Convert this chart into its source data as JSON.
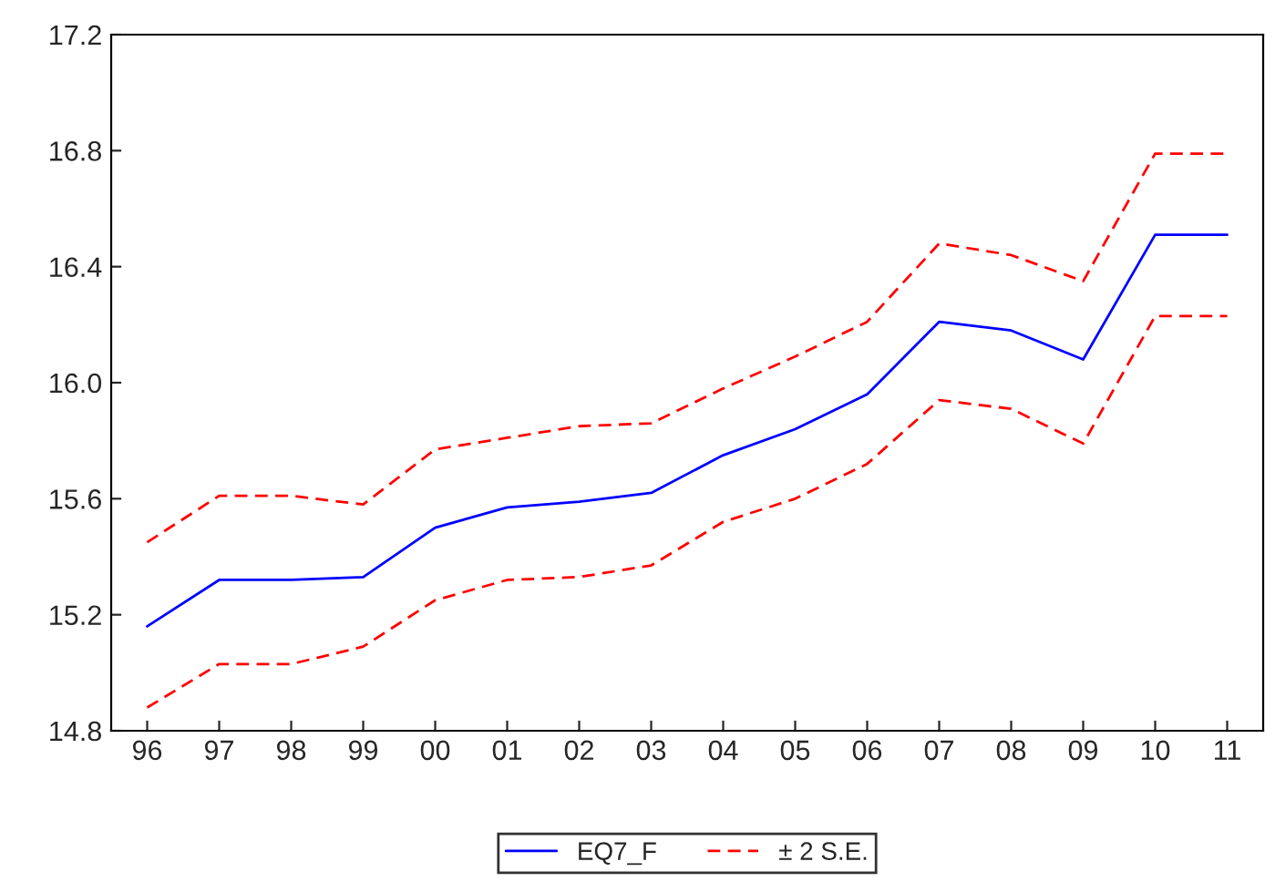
{
  "chart_data": {
    "type": "line",
    "categories": [
      "96",
      "97",
      "98",
      "99",
      "00",
      "01",
      "02",
      "03",
      "04",
      "05",
      "06",
      "07",
      "08",
      "09",
      "10",
      "11"
    ],
    "series": [
      {
        "name": "EQ7_F",
        "color": "#0000ff",
        "line_style": "solid",
        "values": [
          15.16,
          15.32,
          15.32,
          15.33,
          15.5,
          15.57,
          15.59,
          15.62,
          15.75,
          15.84,
          15.96,
          16.21,
          16.18,
          16.08,
          16.51,
          16.51
        ]
      },
      {
        "name": "± 2 S.E.",
        "color": "#ff0000",
        "line_style": "dashed",
        "values": [
          15.45,
          15.61,
          15.61,
          15.58,
          15.77,
          15.81,
          15.85,
          15.86,
          15.98,
          16.09,
          16.21,
          16.48,
          16.44,
          16.35,
          16.79,
          16.79
        ]
      },
      {
        "color": "#ff0000",
        "line_style": "dashed",
        "values": [
          14.88,
          15.03,
          15.03,
          15.09,
          15.25,
          15.32,
          15.33,
          15.37,
          15.52,
          15.6,
          15.72,
          15.94,
          15.91,
          15.79,
          16.23,
          16.23
        ]
      }
    ],
    "ylim": [
      14.8,
      17.2
    ],
    "yticks": [
      14.8,
      15.2,
      15.6,
      {
        "value": 16.0,
        "label": "16.0"
      },
      16.4,
      16.8,
      17.2
    ],
    "grid": false,
    "legend": "bottom",
    "marker": "none"
  }
}
